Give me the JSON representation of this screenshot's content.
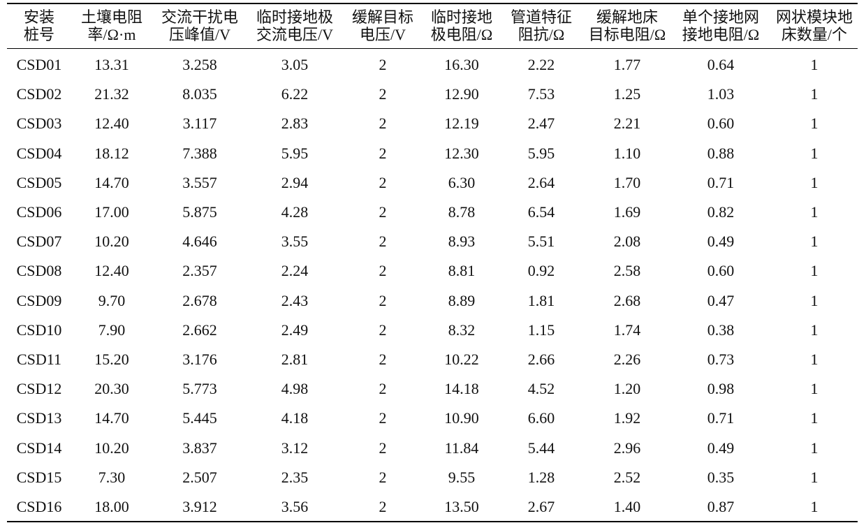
{
  "table": {
    "header": [
      [
        "安装",
        "桩号"
      ],
      [
        "土壤电阻",
        "率/Ω·m"
      ],
      [
        "交流干扰电",
        "压峰值/V"
      ],
      [
        "临时接地极",
        "交流电压/V"
      ],
      [
        "缓解目标",
        "电压/V"
      ],
      [
        "临时接地",
        "极电阻/Ω"
      ],
      [
        "管道特征",
        "阻抗/Ω"
      ],
      [
        "缓解地床",
        "目标电阻/Ω"
      ],
      [
        "单个接地网",
        "接地电阻/Ω"
      ],
      [
        "网状模块地",
        "床数量/个"
      ]
    ],
    "rows": [
      [
        "CSD01",
        "13.31",
        "3.258",
        "3.05",
        "2",
        "16.30",
        "2.22",
        "1.77",
        "0.64",
        "1"
      ],
      [
        "CSD02",
        "21.32",
        "8.035",
        "6.22",
        "2",
        "12.90",
        "7.53",
        "1.25",
        "1.03",
        "1"
      ],
      [
        "CSD03",
        "12.40",
        "3.117",
        "2.83",
        "2",
        "12.19",
        "2.47",
        "2.21",
        "0.60",
        "1"
      ],
      [
        "CSD04",
        "18.12",
        "7.388",
        "5.95",
        "2",
        "12.30",
        "5.95",
        "1.10",
        "0.88",
        "1"
      ],
      [
        "CSD05",
        "14.70",
        "3.557",
        "2.94",
        "2",
        "6.30",
        "2.64",
        "1.70",
        "0.71",
        "1"
      ],
      [
        "CSD06",
        "17.00",
        "5.875",
        "4.28",
        "2",
        "8.78",
        "6.54",
        "1.69",
        "0.82",
        "1"
      ],
      [
        "CSD07",
        "10.20",
        "4.646",
        "3.55",
        "2",
        "8.93",
        "5.51",
        "2.08",
        "0.49",
        "1"
      ],
      [
        "CSD08",
        "12.40",
        "2.357",
        "2.24",
        "2",
        "8.81",
        "0.92",
        "2.58",
        "0.60",
        "1"
      ],
      [
        "CSD09",
        "9.70",
        "2.678",
        "2.43",
        "2",
        "8.89",
        "1.81",
        "2.68",
        "0.47",
        "1"
      ],
      [
        "CSD10",
        "7.90",
        "2.662",
        "2.49",
        "2",
        "8.32",
        "1.15",
        "1.74",
        "0.38",
        "1"
      ],
      [
        "CSD11",
        "15.20",
        "3.176",
        "2.81",
        "2",
        "10.22",
        "2.66",
        "2.26",
        "0.73",
        "1"
      ],
      [
        "CSD12",
        "20.30",
        "5.773",
        "4.98",
        "2",
        "14.18",
        "4.52",
        "1.20",
        "0.98",
        "1"
      ],
      [
        "CSD13",
        "14.70",
        "5.445",
        "4.18",
        "2",
        "10.90",
        "6.60",
        "1.92",
        "0.71",
        "1"
      ],
      [
        "CSD14",
        "10.20",
        "3.837",
        "3.12",
        "2",
        "11.84",
        "5.44",
        "2.96",
        "0.49",
        "1"
      ],
      [
        "CSD15",
        "7.30",
        "2.507",
        "2.35",
        "2",
        "9.55",
        "1.28",
        "2.52",
        "0.35",
        "1"
      ],
      [
        "CSD16",
        "18.00",
        "3.912",
        "3.56",
        "2",
        "13.50",
        "2.67",
        "1.40",
        "0.87",
        "1"
      ]
    ]
  }
}
